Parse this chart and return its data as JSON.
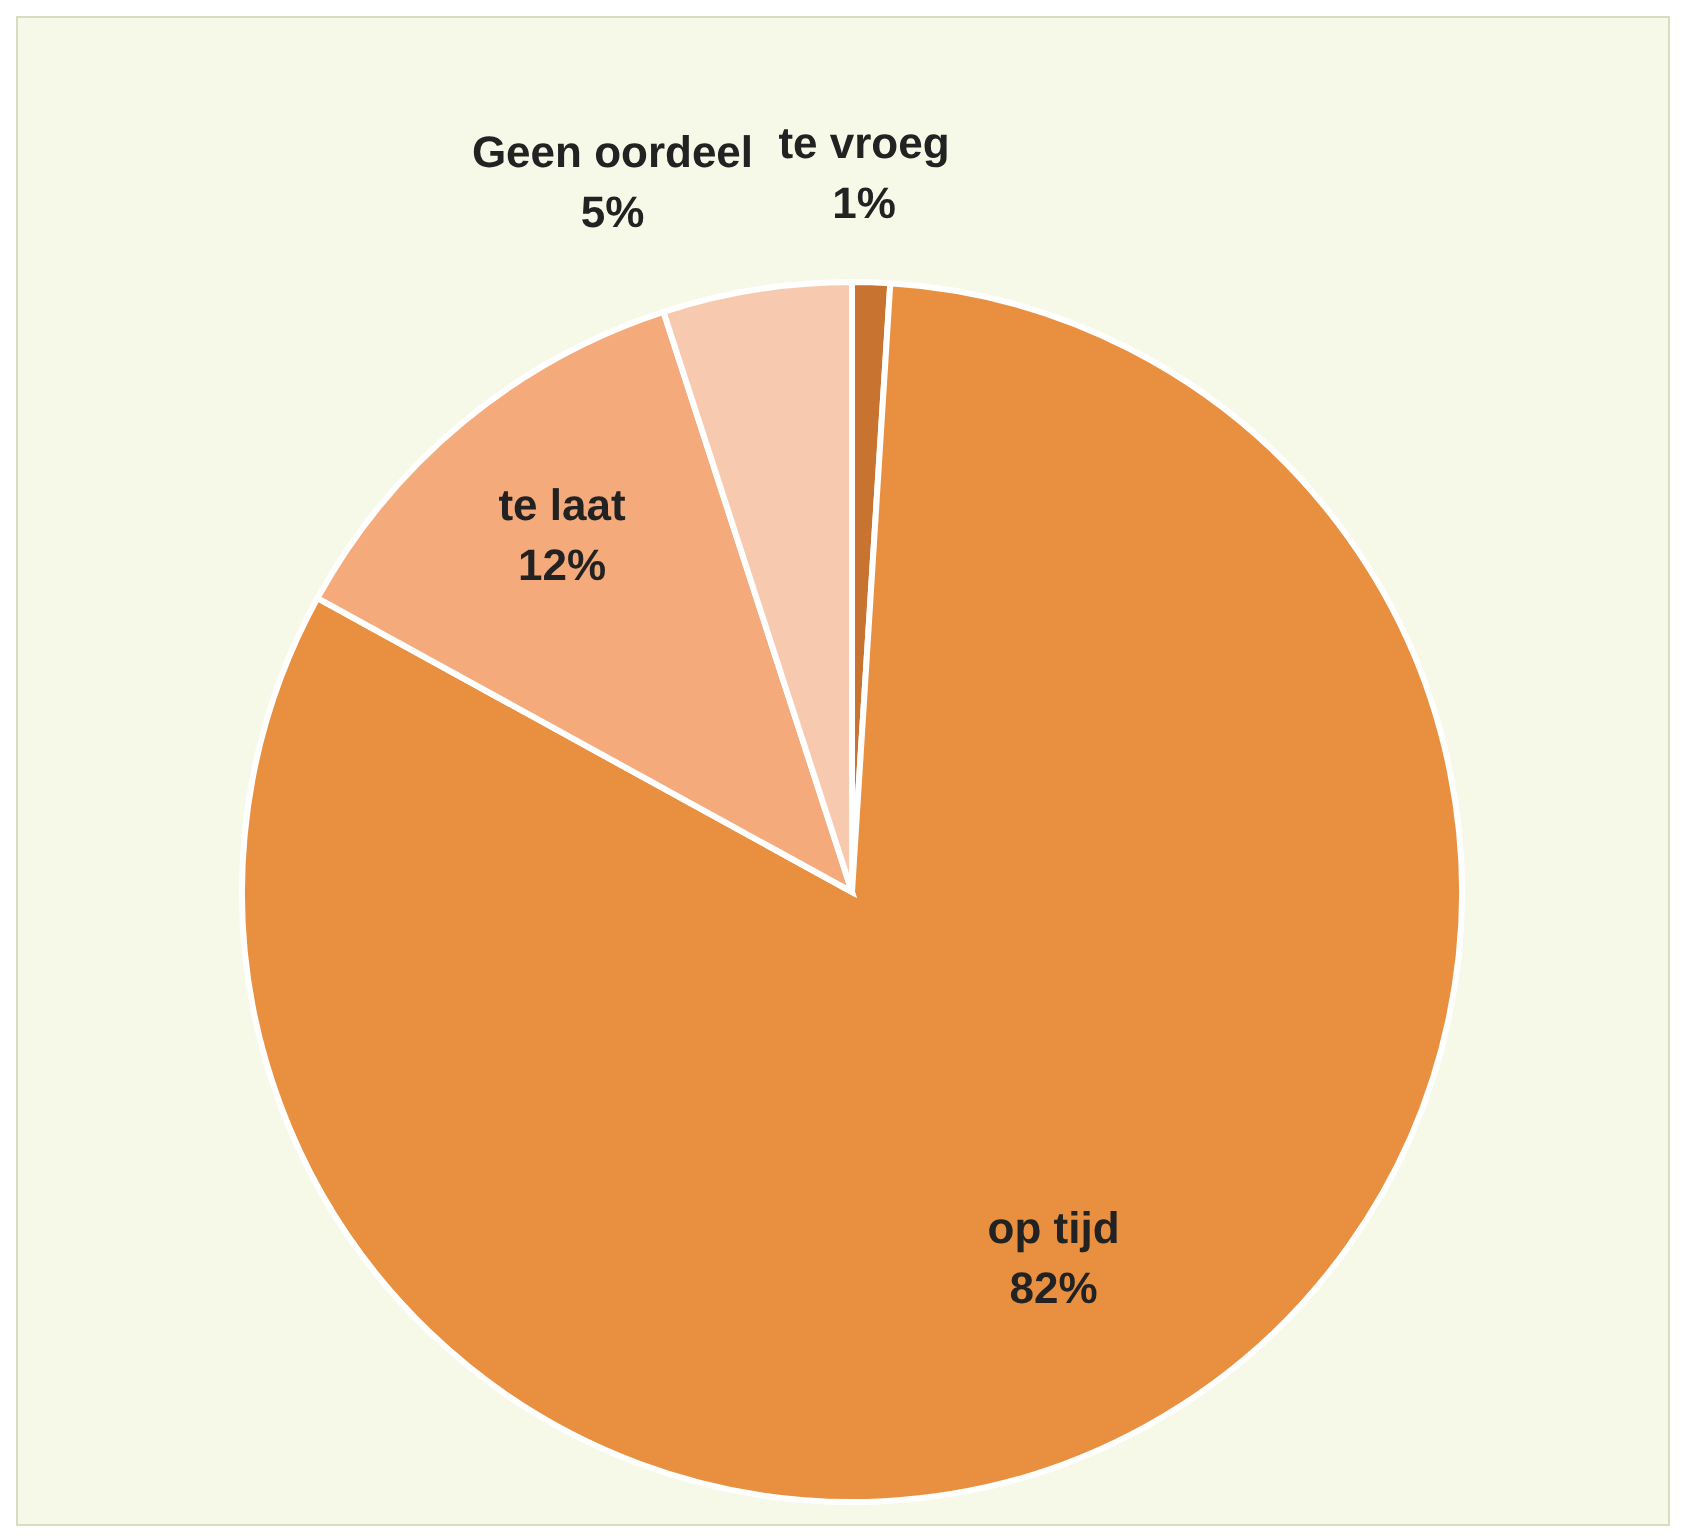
{
  "chart_data": {
    "type": "pie",
    "categories": [
      "te vroeg",
      "op tijd",
      "te laat",
      "Geen oordeel"
    ],
    "values": [
      1,
      82,
      12,
      5
    ],
    "colors": [
      "#c8732f",
      "#e8903f",
      "#f4aa7a",
      "#f7cab0"
    ],
    "value_labels": [
      "1%",
      "82%",
      "12%",
      "5%"
    ],
    "legend": false
  }
}
